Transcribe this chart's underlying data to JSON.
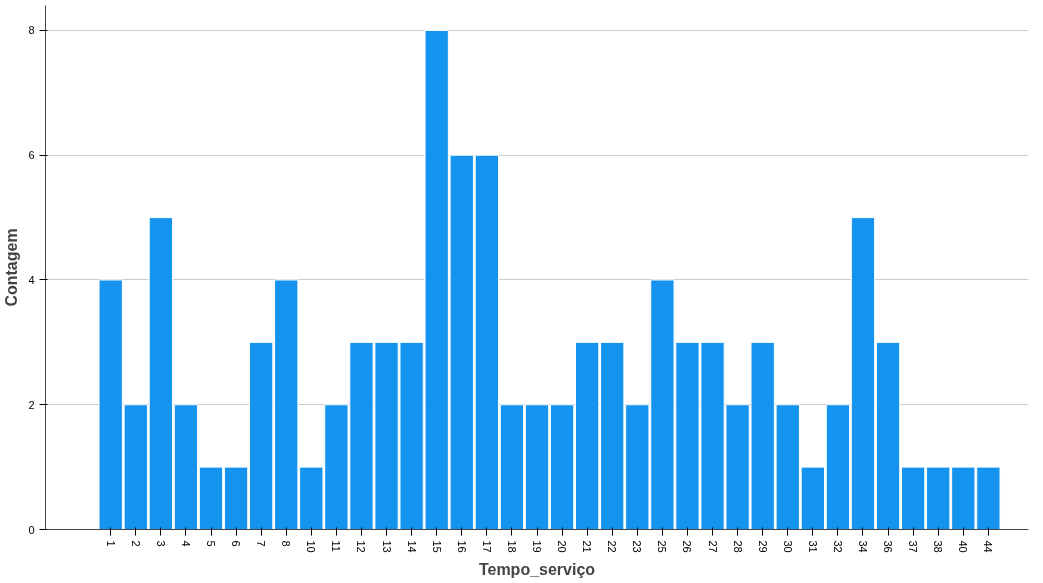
{
  "chart_data": {
    "type": "bar",
    "xlabel": "Tempo_serviço",
    "ylabel": "Contagem",
    "categories": [
      "1",
      "2",
      "3",
      "4",
      "5",
      "6",
      "7",
      "8",
      "10",
      "11",
      "12",
      "13",
      "14",
      "15",
      "16",
      "17",
      "18",
      "19",
      "20",
      "21",
      "22",
      "23",
      "25",
      "26",
      "27",
      "28",
      "29",
      "30",
      "31",
      "32",
      "34",
      "36",
      "37",
      "38",
      "40",
      "44"
    ],
    "values": [
      4,
      2,
      5,
      2,
      1,
      1,
      3,
      4,
      1,
      2,
      3,
      3,
      3,
      8,
      6,
      6,
      2,
      2,
      2,
      3,
      3,
      2,
      4,
      3,
      3,
      2,
      3,
      2,
      1,
      2,
      5,
      3,
      1,
      1,
      1,
      1
    ],
    "color": "#1493ef",
    "ylim": [
      0,
      8.4
    ],
    "yticks": [
      0,
      2,
      4,
      6,
      8
    ],
    "grid": "y"
  }
}
